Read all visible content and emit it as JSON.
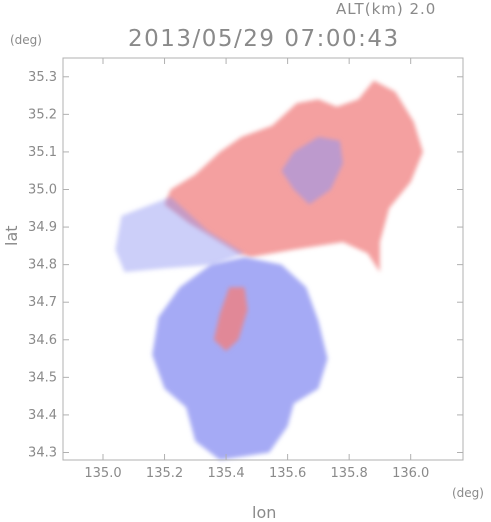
{
  "header": {
    "alt_label": "ALT(km) 2.0",
    "timestamp": "2013/05/29 07:00:43"
  },
  "chart_data": {
    "type": "heatmap",
    "title": "2013/05/29 07:00:43",
    "subtitle": "ALT(km) 2.0",
    "xlabel": "lon",
    "ylabel": "lat",
    "x_unit": "(deg)",
    "y_unit": "(deg)",
    "xlim": [
      134.87,
      136.17
    ],
    "ylim": [
      34.28,
      35.35
    ],
    "x_ticks": [
      135.0,
      135.2,
      135.4,
      135.6,
      135.8,
      136.0
    ],
    "x_tick_labels": [
      "135.0",
      "135.2",
      "135.4",
      "135.6",
      "135.8",
      "136.0"
    ],
    "y_ticks": [
      34.3,
      34.4,
      34.5,
      34.6,
      34.7,
      34.8,
      34.9,
      35.0,
      35.1,
      35.2,
      35.3
    ],
    "y_tick_labels": [
      "34.3",
      "34.4",
      "34.5",
      "34.6",
      "34.7",
      "34.8",
      "34.9",
      "35.0",
      "35.1",
      "35.2",
      "35.3"
    ],
    "grid": false,
    "colors": {
      "positive": "#f08080",
      "negative": "#8f95f2",
      "neutral": "#ffffff",
      "axis": "#b0b0b0"
    },
    "regions": {
      "north_positive": [
        [
          135.48,
          34.82
        ],
        [
          135.62,
          34.84
        ],
        [
          135.78,
          34.86
        ],
        [
          135.86,
          34.83
        ],
        [
          135.9,
          34.78
        ],
        [
          135.9,
          34.86
        ],
        [
          135.93,
          34.95
        ],
        [
          136.0,
          35.02
        ],
        [
          136.04,
          35.1
        ],
        [
          136.01,
          35.18
        ],
        [
          135.95,
          35.26
        ],
        [
          135.88,
          35.29
        ],
        [
          135.83,
          35.24
        ],
        [
          135.76,
          35.22
        ],
        [
          135.7,
          35.24
        ],
        [
          135.63,
          35.23
        ],
        [
          135.55,
          35.17
        ],
        [
          135.45,
          35.14
        ],
        [
          135.38,
          35.1
        ],
        [
          135.3,
          35.04
        ],
        [
          135.22,
          35.0
        ],
        [
          135.2,
          34.96
        ],
        [
          135.28,
          34.91
        ],
        [
          135.36,
          34.87
        ],
        [
          135.44,
          34.83
        ]
      ],
      "west_negative": [
        [
          135.06,
          34.93
        ],
        [
          135.22,
          34.98
        ],
        [
          135.34,
          34.89
        ],
        [
          135.46,
          34.83
        ],
        [
          135.36,
          34.8
        ],
        [
          135.2,
          34.79
        ],
        [
          135.07,
          34.78
        ],
        [
          135.04,
          34.84
        ]
      ],
      "south_negative": [
        [
          135.46,
          34.82
        ],
        [
          135.58,
          34.8
        ],
        [
          135.66,
          34.74
        ],
        [
          135.7,
          34.65
        ],
        [
          135.73,
          34.55
        ],
        [
          135.7,
          34.47
        ],
        [
          135.62,
          34.43
        ],
        [
          135.6,
          34.37
        ],
        [
          135.54,
          34.3
        ],
        [
          135.38,
          34.28
        ],
        [
          135.3,
          34.33
        ],
        [
          135.27,
          34.42
        ],
        [
          135.2,
          34.47
        ],
        [
          135.16,
          34.56
        ],
        [
          135.18,
          34.66
        ],
        [
          135.25,
          34.74
        ],
        [
          135.35,
          34.8
        ]
      ],
      "north_negative_patch": [
        [
          135.62,
          35.1
        ],
        [
          135.7,
          35.14
        ],
        [
          135.77,
          35.13
        ],
        [
          135.78,
          35.07
        ],
        [
          135.74,
          35.0
        ],
        [
          135.67,
          34.96
        ],
        [
          135.62,
          35.0
        ],
        [
          135.58,
          35.05
        ]
      ],
      "south_positive_patch": [
        [
          135.41,
          34.74
        ],
        [
          135.46,
          34.74
        ],
        [
          135.47,
          34.68
        ],
        [
          135.44,
          34.6
        ],
        [
          135.4,
          34.57
        ],
        [
          135.36,
          34.6
        ],
        [
          135.38,
          34.67
        ]
      ]
    }
  }
}
